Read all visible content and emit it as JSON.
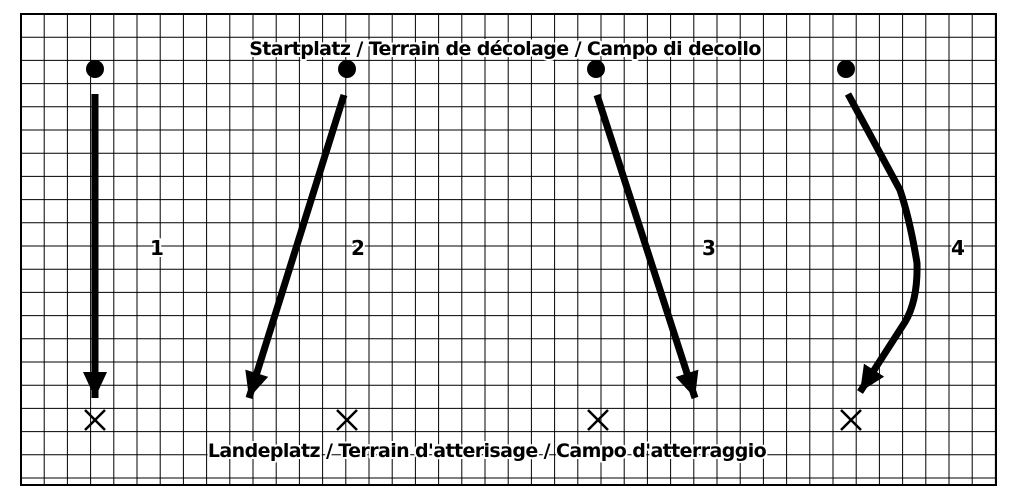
{
  "start_label": "Startplatz / Terrain de décolage / Campo di decollo",
  "landing_label": "Landeplatz / Terrain d'atterisage / Campo d'atterraggio",
  "paths": [
    {
      "number": "1"
    },
    {
      "number": "2"
    },
    {
      "number": "3"
    },
    {
      "number": "4"
    }
  ],
  "colors": {
    "ink": "#000000",
    "grid": "#000000",
    "background": "#ffffff"
  }
}
